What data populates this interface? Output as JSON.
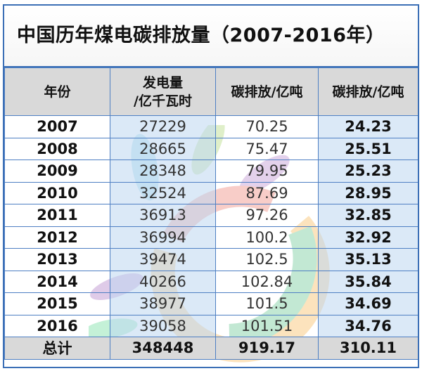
{
  "title": "中国历年煤电碳排放量（2007-2016年）",
  "headers": {
    "year": "年份",
    "power_line1": "发电量",
    "power_line2": "/亿千瓦时",
    "carbon_a": "碳排放/亿吨",
    "carbon_b": "碳排放/亿吨"
  },
  "rows": [
    {
      "year": "2007",
      "power": "27229",
      "carbon_a": "70.25",
      "carbon_b": "24.23"
    },
    {
      "year": "2008",
      "power": "28665",
      "carbon_a": "75.47",
      "carbon_b": "25.51"
    },
    {
      "year": "2009",
      "power": "28348",
      "carbon_a": "79.95",
      "carbon_b": "25.23"
    },
    {
      "year": "2010",
      "power": "32524",
      "carbon_a": "87.69",
      "carbon_b": "28.95"
    },
    {
      "year": "2011",
      "power": "36913",
      "carbon_a": "97.26",
      "carbon_b": "32.85"
    },
    {
      "year": "2012",
      "power": "36994",
      "carbon_a": "100.2",
      "carbon_b": "32.92"
    },
    {
      "year": "2013",
      "power": "39474",
      "carbon_a": "102.5",
      "carbon_b": "35.13"
    },
    {
      "year": "2014",
      "power": "40266",
      "carbon_a": "102.84",
      "carbon_b": "35.84"
    },
    {
      "year": "2015",
      "power": "38977",
      "carbon_a": "101.5",
      "carbon_b": "34.69"
    },
    {
      "year": "2016",
      "power": "39058",
      "carbon_a": "101.51",
      "carbon_b": "34.76"
    }
  ],
  "total": {
    "label": "总计",
    "power": "348448",
    "carbon_a": "919.17",
    "carbon_b": "310.11"
  },
  "colors": {
    "border": "#3b6fb6",
    "header_bg": "#d9d9d9",
    "shade": "#bed7f0"
  }
}
